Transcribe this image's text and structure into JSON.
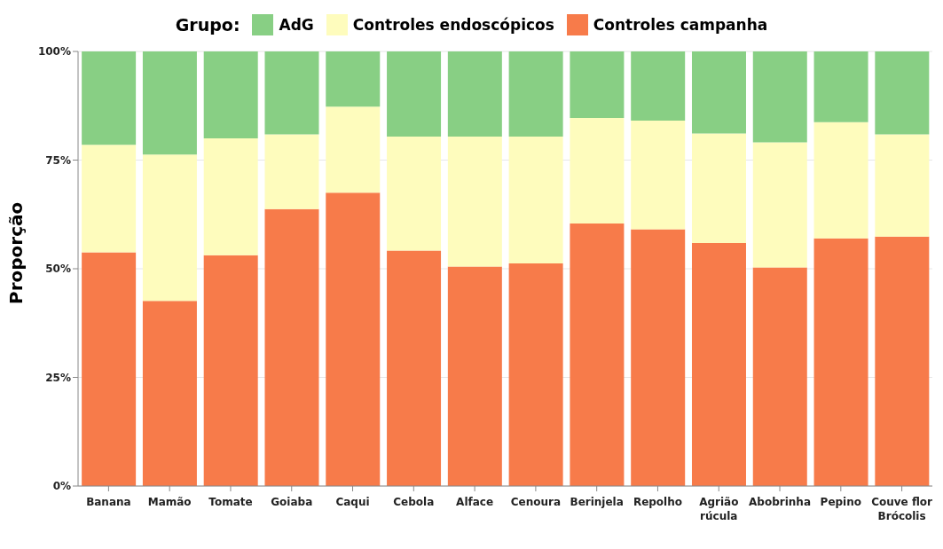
{
  "chart_data": {
    "type": "bar",
    "stacked": true,
    "ylabel": "Proporção",
    "legend_title": "Grupo:",
    "legend": "top",
    "grid": "y",
    "categories": [
      "Banana",
      "Mamão",
      "Tomate",
      "Goiaba",
      "Caqui",
      "Cebola",
      "Alface",
      "Cenoura",
      "Berinjela",
      "Repolho",
      "Agrião\nrúcula",
      "Abobrinha",
      "Pepino",
      "Couve flor\nBrócolis"
    ],
    "series": [
      {
        "name": "Controles campanha",
        "color": "#f77b4a",
        "values": [
          53.8,
          42.6,
          53.1,
          63.7,
          67.5,
          54.2,
          50.5,
          51.2,
          60.4,
          59.1,
          55.9,
          50.3,
          57.0,
          57.4
        ]
      },
      {
        "name": "Controles endoscópicos",
        "color": "#fefcbd",
        "values": [
          24.7,
          33.7,
          26.9,
          17.2,
          19.8,
          26.2,
          29.9,
          29.2,
          24.3,
          25.0,
          25.2,
          28.8,
          26.7,
          23.5
        ]
      },
      {
        "name": "AdG",
        "color": "#88cf84",
        "values": [
          21.5,
          23.7,
          20.0,
          19.1,
          12.7,
          19.6,
          19.6,
          19.6,
          15.3,
          15.9,
          18.9,
          20.9,
          16.3,
          19.1
        ]
      }
    ],
    "ylim": [
      0,
      100
    ],
    "yticks": [
      {
        "value": 0,
        "label": "0%"
      },
      {
        "value": 25,
        "label": "25%"
      },
      {
        "value": 50,
        "label": "50%"
      },
      {
        "value": 75,
        "label": "75%"
      },
      {
        "value": 100,
        "label": "100%"
      }
    ]
  }
}
